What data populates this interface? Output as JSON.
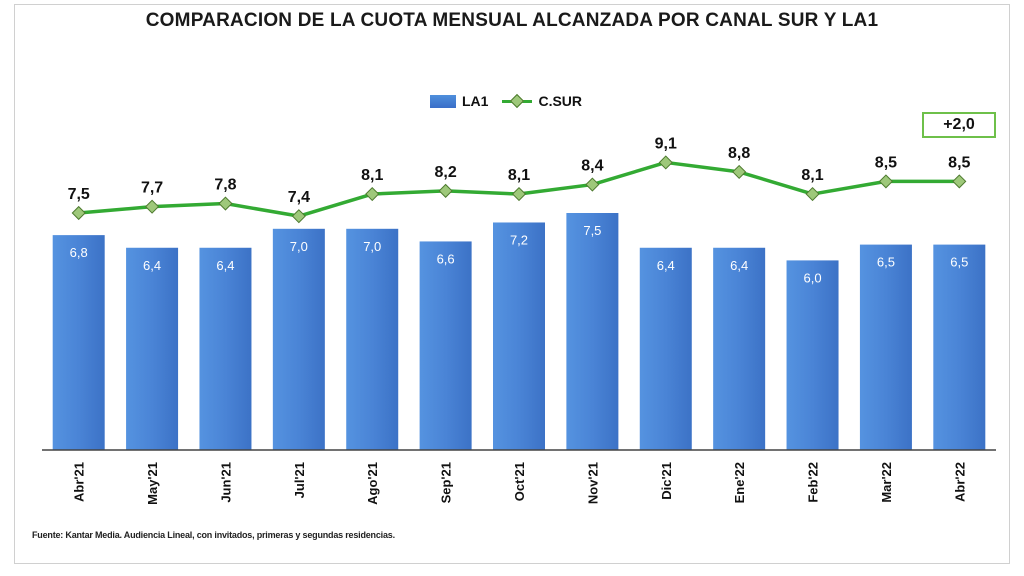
{
  "chart_data": {
    "type": "bar",
    "title": "COMPARACION DE LA CUOTA MENSUAL ALCANZADA POR CANAL SUR Y LA1",
    "categories": [
      "Abr'21",
      "May'21",
      "Jun'21",
      "Jul'21",
      "Ago'21",
      "Sep'21",
      "Oct'21",
      "Nov'21",
      "Dic'21",
      "Ene'22",
      "Feb'22",
      "Mar'22",
      "Abr'22"
    ],
    "series": [
      {
        "name": "LA1",
        "type": "bar",
        "color": "#4a84d6",
        "values": [
          6.8,
          6.4,
          6.4,
          7.0,
          7.0,
          6.6,
          7.2,
          7.5,
          6.4,
          6.4,
          6.0,
          6.5,
          6.5
        ],
        "labels": [
          "6,8",
          "6,4",
          "6,4",
          "7,0",
          "7,0",
          "6,6",
          "7,2",
          "7,5",
          "6,4",
          "6,4",
          "6,0",
          "6,5",
          "6,5"
        ]
      },
      {
        "name": "C.SUR",
        "type": "line",
        "color": "#33aa33",
        "values": [
          7.5,
          7.7,
          7.8,
          7.4,
          8.1,
          8.2,
          8.1,
          8.4,
          9.1,
          8.8,
          8.1,
          8.5,
          8.5
        ],
        "labels": [
          "7,5",
          "7,7",
          "7,8",
          "7,4",
          "8,1",
          "8,2",
          "8,1",
          "8,4",
          "9,1",
          "8,8",
          "8,1",
          "8,5",
          "8,5"
        ]
      }
    ],
    "annotation": "+2,0",
    "legend_position": "top-center",
    "grid": false,
    "ylim": [
      0,
      11
    ]
  },
  "footnote": "Fuente: Kantar Media. Audiencia Lineal, con invitados, primeras y segundas residencias."
}
